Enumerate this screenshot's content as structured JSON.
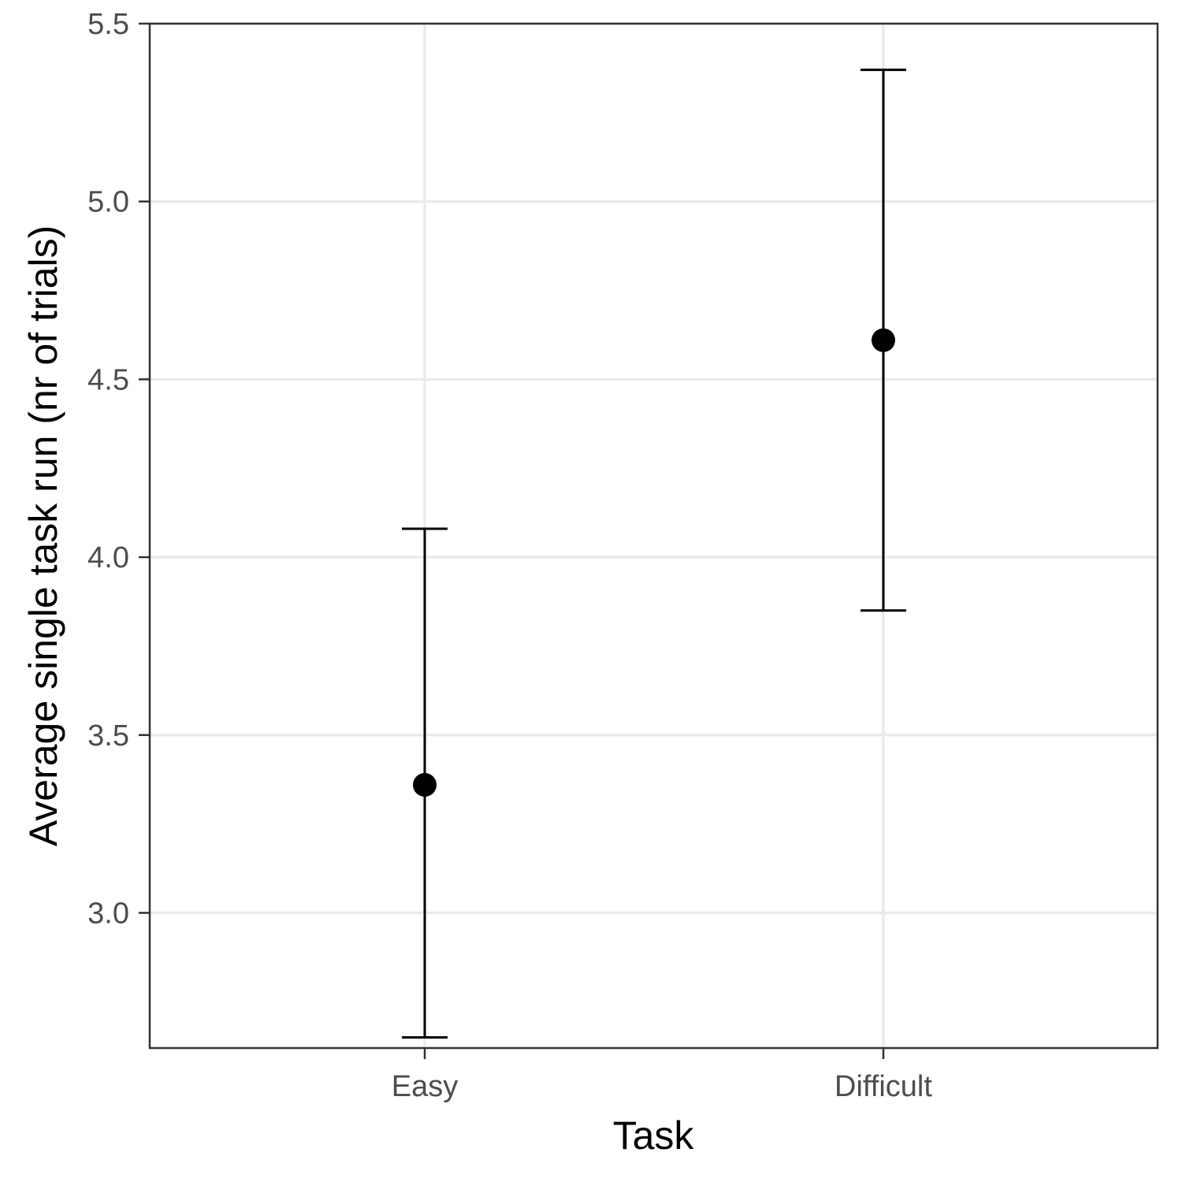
{
  "chart_data": {
    "type": "scatter",
    "title": "",
    "xlabel": "Task",
    "ylabel": "Average single task run (nr of trials)",
    "categories": [
      "Easy",
      "Difficult"
    ],
    "series": [
      {
        "values": [
          3.36,
          4.61
        ],
        "error_low": [
          2.65,
          3.85
        ],
        "error_high": [
          4.08,
          5.37
        ]
      }
    ],
    "ylim": [
      2.62,
      5.5
    ],
    "yticks": [
      3.0,
      3.5,
      4.0,
      4.5,
      5.0,
      5.5
    ],
    "ytick_labels": [
      "3.0",
      "3.5",
      "4.0",
      "4.5",
      "5.0",
      "5.5"
    ],
    "grid": true,
    "legend": "none",
    "colors": {
      "point": "#000000",
      "grid": "#ebebeb",
      "panel_border": "#333333",
      "tick_text": "#4d4d4d"
    }
  }
}
